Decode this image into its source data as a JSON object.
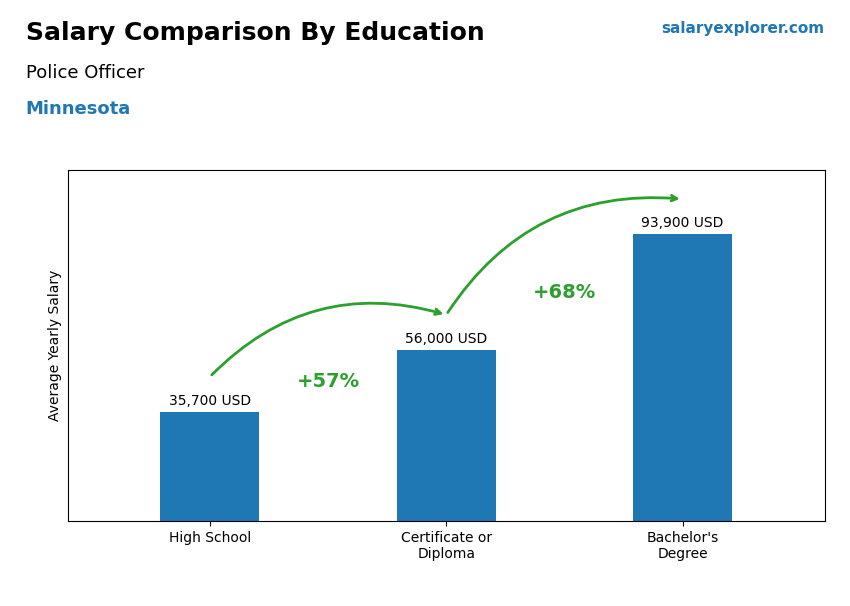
{
  "chart_data": {
    "type": "bar",
    "title": "Salary Comparison By Education",
    "subtitle": "Police Officer",
    "ylabel": "Average Yearly Salary",
    "categories": [
      "High School",
      "Certificate or\nDiploma",
      "Bachelor's\nDegree"
    ],
    "values": [
      35700,
      56000,
      93900
    ],
    "value_labels": [
      "35,700 USD",
      "56,000 USD",
      "93,900 USD"
    ],
    "data_labels": true,
    "ylim": [
      0,
      115000
    ],
    "tick_labels": "x",
    "grid": false,
    "annotations": [
      {
        "text": "Minnesota"
      },
      {
        "text": "salaryexplorer.com"
      },
      {
        "text": "+57%",
        "from": "High School",
        "to": "Certificate or\nDiploma"
      },
      {
        "text": "+68%",
        "from": "Certificate or\nDiploma",
        "to": "Bachelor's\nDegree"
      }
    ]
  }
}
